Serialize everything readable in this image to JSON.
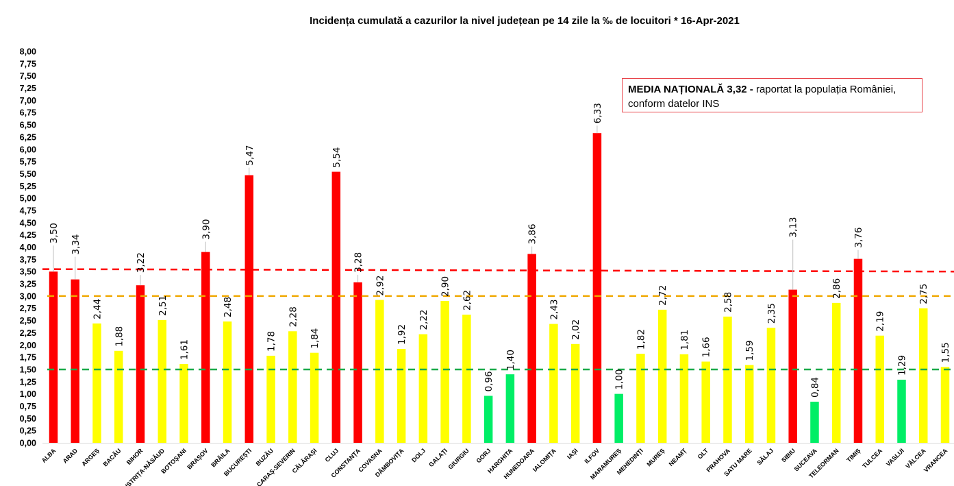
{
  "chart_data": {
    "type": "bar",
    "title": "Incidența cumulată a cazurilor la nivel județean pe 14 zile   la ‰ de locuitori  *   16-Apr-2021",
    "xlabel": "",
    "ylabel": "",
    "ylim": [
      0,
      8
    ],
    "yticks": [
      "0,00",
      "0,25",
      "0,50",
      "0,75",
      "1,00",
      "1,25",
      "1,50",
      "1,75",
      "2,00",
      "2,25",
      "2,50",
      "2,75",
      "3,00",
      "3,25",
      "3,50",
      "3,75",
      "4,00",
      "4,25",
      "4,50",
      "4,75",
      "5,00",
      "5,25",
      "5,50",
      "5,75",
      "6,00",
      "6,25",
      "6,50",
      "6,75",
      "7,00",
      "7,25",
      "7,50",
      "7,75",
      "8,00"
    ],
    "ytick_values": [
      0,
      0.25,
      0.5,
      0.75,
      1,
      1.25,
      1.5,
      1.75,
      2,
      2.25,
      2.5,
      2.75,
      3,
      3.25,
      3.5,
      3.75,
      4,
      4.25,
      4.5,
      4.75,
      5,
      5.25,
      5.5,
      5.75,
      6,
      6.25,
      6.5,
      6.75,
      7,
      7.25,
      7.5,
      7.75,
      8
    ],
    "grid": false,
    "legend": "none",
    "categories": [
      "ALBA",
      "ARAD",
      "ARGEȘ",
      "BACĂU",
      "BIHOR",
      "BISTRIȚA-NĂSĂUD",
      "BOTOȘANI",
      "BRAȘOV",
      "BRĂILA",
      "BUCUREȘTI",
      "BUZĂU",
      "CARAȘ-SEVERIN",
      "CĂLĂRAȘI",
      "CLUJ",
      "CONSTANȚA",
      "COVASNA",
      "DÂMBOVIȚA",
      "DOLJ",
      "GALAȚI",
      "GIURGIU",
      "GORJ",
      "HARGHITA",
      "HUNEDOARA",
      "IALOMIȚA",
      "IAȘI",
      "ILFOV",
      "MARAMUREȘ",
      "MEHEDINȚI",
      "MUREȘ",
      "NEAMȚ",
      "OLT",
      "PRAHOVA",
      "SATU MARE",
      "SĂLAJ",
      "SIBIU",
      "SUCEAVA",
      "TELEORMAN",
      "TIMIȘ",
      "TULCEA",
      "VASLUI",
      "VÂLCEA",
      "VRANCEA"
    ],
    "values": [
      3.5,
      3.34,
      2.44,
      1.88,
      3.22,
      2.51,
      1.61,
      3.9,
      2.48,
      5.47,
      1.78,
      2.28,
      1.84,
      5.54,
      3.28,
      2.92,
      1.92,
      2.22,
      2.9,
      2.62,
      0.96,
      1.4,
      3.86,
      2.43,
      2.02,
      6.33,
      1.0,
      1.82,
      2.72,
      1.81,
      1.66,
      2.58,
      1.59,
      2.35,
      3.13,
      0.84,
      2.86,
      3.76,
      2.19,
      1.29,
      2.75,
      1.55
    ],
    "value_labels": [
      "3,50",
      "3,34",
      "2,44",
      "1,88",
      "3,22",
      "2,51",
      "1,61",
      "3,90",
      "2,48",
      "5,47",
      "1,78",
      "2,28",
      "1,84",
      "5,54",
      "3,28",
      "2,92",
      "1,92",
      "2,22",
      "2,90",
      "2,62",
      "0,96",
      "1,40",
      "3,86",
      "2,43",
      "2,02",
      "6,33",
      "1,00",
      "1,82",
      "2,72",
      "1,81",
      "1,66",
      "2,58",
      "1,59",
      "2,35",
      "3,13",
      "0,84",
      "2,86",
      "3,76",
      "2,19",
      "1,29",
      "2,75",
      "1,55"
    ],
    "color_rules": [
      {
        "level": "red",
        "color": "#ff0000",
        "above": 3.0
      },
      {
        "level": "yellow",
        "color": "#ffff00",
        "between": [
          1.5,
          3.0
        ]
      },
      {
        "level": "green",
        "color": "#00ee66",
        "below": 1.5
      }
    ],
    "reference_lines": [
      {
        "name": "red-threshold",
        "color": "#ff0000",
        "start_value": 3.55,
        "end_value": 3.5,
        "style": "dashed"
      },
      {
        "name": "orange-threshold",
        "color": "#f0a800",
        "value": 3.0,
        "style": "dashed"
      },
      {
        "name": "green-threshold",
        "color": "#1aaa4a",
        "value": 1.5,
        "style": "dashed"
      }
    ],
    "annotation": {
      "bold": "MEDIA NAȚIONALĂ 3,32 -",
      "text": " raportat la populația României,",
      "line2": "conform datelor INS",
      "border_color": "#e8434a"
    }
  }
}
